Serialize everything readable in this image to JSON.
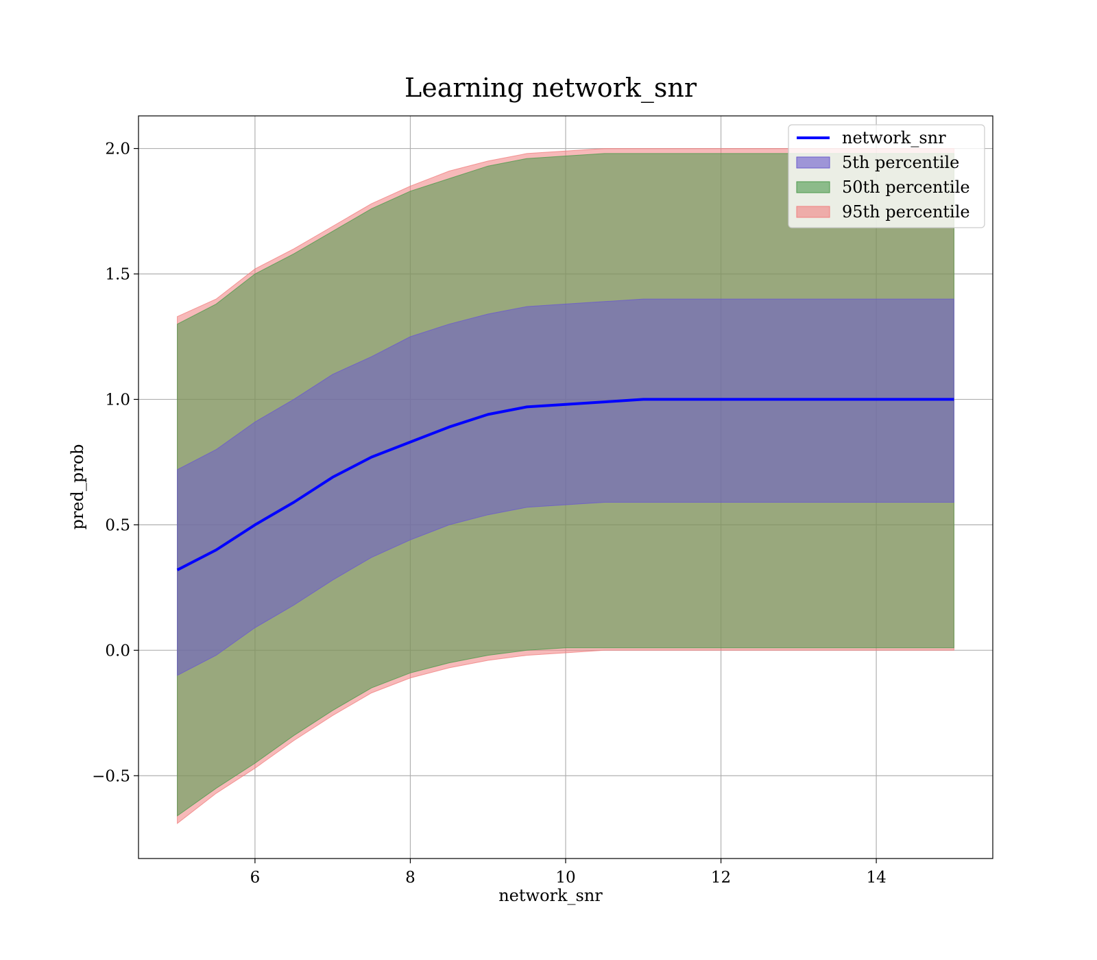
{
  "chart_data": {
    "type": "line",
    "title": "Learning network_snr",
    "xlabel": "network_snr",
    "ylabel": "pred_prob",
    "xlim": [
      4.5,
      15.5
    ],
    "ylim": [
      -0.83,
      2.13
    ],
    "xticks": [
      6,
      8,
      10,
      12,
      14
    ],
    "xtick_labels": [
      "6",
      "8",
      "10",
      "12",
      "14"
    ],
    "yticks": [
      -0.5,
      0.0,
      0.5,
      1.0,
      1.5,
      2.0
    ],
    "ytick_labels": [
      "−0.5",
      "0.0",
      "0.5",
      "1.0",
      "1.5",
      "2.0"
    ],
    "grid": true,
    "legend_position": "top-right",
    "x": [
      5.0,
      5.5,
      6.0,
      6.5,
      7.0,
      7.5,
      8.0,
      8.5,
      9.0,
      9.5,
      10.0,
      10.5,
      11.0,
      11.5,
      12.0,
      12.5,
      13.0,
      13.5,
      14.0,
      14.5,
      15.0
    ],
    "series": [
      {
        "name": "network_snr",
        "kind": "line",
        "color": "#0000ff",
        "values": [
          0.32,
          0.4,
          0.5,
          0.59,
          0.69,
          0.77,
          0.83,
          0.89,
          0.94,
          0.97,
          0.98,
          0.99,
          1.0,
          1.0,
          1.0,
          1.0,
          1.0,
          1.0,
          1.0,
          1.0,
          1.0
        ]
      }
    ],
    "bands": [
      {
        "name": "5th percentile",
        "color": "#6a5acd",
        "lower": [
          -0.1,
          -0.02,
          0.09,
          0.18,
          0.28,
          0.37,
          0.44,
          0.5,
          0.54,
          0.57,
          0.58,
          0.59,
          0.59,
          0.59,
          0.59,
          0.59,
          0.59,
          0.59,
          0.59,
          0.59,
          0.59
        ],
        "upper": [
          0.72,
          0.8,
          0.91,
          1.0,
          1.1,
          1.17,
          1.25,
          1.3,
          1.34,
          1.37,
          1.38,
          1.39,
          1.4,
          1.4,
          1.4,
          1.4,
          1.4,
          1.4,
          1.4,
          1.4,
          1.4
        ]
      },
      {
        "name": "50th percentile",
        "color": "#4c9a4c",
        "lower": [
          -0.66,
          -0.55,
          -0.45,
          -0.34,
          -0.24,
          -0.15,
          -0.09,
          -0.05,
          -0.02,
          0.0,
          0.01,
          0.01,
          0.01,
          0.01,
          0.01,
          0.01,
          0.01,
          0.01,
          0.01,
          0.01,
          0.01
        ],
        "upper": [
          1.3,
          1.38,
          1.5,
          1.58,
          1.67,
          1.76,
          1.83,
          1.88,
          1.93,
          1.96,
          1.97,
          1.98,
          1.98,
          1.98,
          1.98,
          1.98,
          1.98,
          1.98,
          1.98,
          1.98,
          1.98
        ]
      },
      {
        "name": "95th percentile",
        "color": "#f08080",
        "lower": [
          -0.69,
          -0.57,
          -0.47,
          -0.36,
          -0.26,
          -0.17,
          -0.11,
          -0.07,
          -0.04,
          -0.02,
          -0.01,
          0.0,
          0.0,
          0.0,
          0.0,
          0.0,
          0.0,
          0.0,
          0.0,
          0.0,
          0.0
        ],
        "upper": [
          1.33,
          1.4,
          1.52,
          1.6,
          1.69,
          1.78,
          1.85,
          1.91,
          1.95,
          1.98,
          1.99,
          2.0,
          2.0,
          2.0,
          2.0,
          2.0,
          2.0,
          2.0,
          2.0,
          2.0,
          2.0
        ]
      }
    ]
  }
}
